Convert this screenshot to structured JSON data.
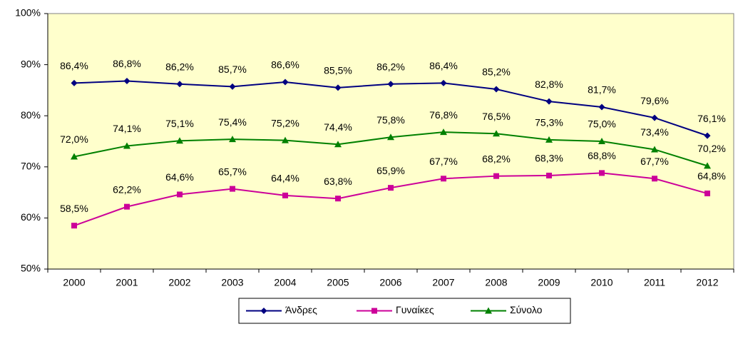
{
  "chart_data": {
    "type": "line",
    "categories": [
      "2000",
      "2001",
      "2002",
      "2003",
      "2004",
      "2005",
      "2006",
      "2007",
      "2008",
      "2009",
      "2010",
      "2011",
      "2012"
    ],
    "series": [
      {
        "name": "Άνδρες",
        "color": "#000080",
        "marker": "diamond",
        "values": [
          86.4,
          86.8,
          86.2,
          85.7,
          86.6,
          85.5,
          86.2,
          86.4,
          85.2,
          82.8,
          81.7,
          79.6,
          76.1
        ],
        "value_labels": [
          "86,4%",
          "86,8%",
          "86,2%",
          "85,7%",
          "86,6%",
          "85,5%",
          "86,2%",
          "86,4%",
          "85,2%",
          "82,8%",
          "81,7%",
          "79,6%",
          "76,1%"
        ]
      },
      {
        "name": "Γυναίκες",
        "color": "#CC0099",
        "marker": "square",
        "values": [
          58.5,
          62.2,
          64.6,
          65.7,
          64.4,
          63.8,
          65.9,
          67.7,
          68.2,
          68.3,
          68.8,
          67.7,
          64.8
        ],
        "value_labels": [
          "58,5%",
          "62,2%",
          "64,6%",
          "65,7%",
          "64,4%",
          "63,8%",
          "65,9%",
          "67,7%",
          "68,2%",
          "68,3%",
          "68,8%",
          "67,7%",
          "64,8%"
        ]
      },
      {
        "name": "Σύνολο",
        "color": "#008000",
        "marker": "triangle",
        "values": [
          72.0,
          74.1,
          75.1,
          75.4,
          75.2,
          74.4,
          75.8,
          76.8,
          76.5,
          75.3,
          75.0,
          73.4,
          70.2
        ],
        "value_labels": [
          "72,0%",
          "74,1%",
          "75,1%",
          "75,4%",
          "75,2%",
          "74,4%",
          "75,8%",
          "76,8%",
          "76,5%",
          "75,3%",
          "75,0%",
          "73,4%",
          "70,2%"
        ]
      }
    ],
    "ylim": [
      50,
      100
    ],
    "yticks": [
      {
        "value": 50,
        "label": "50%"
      },
      {
        "value": 60,
        "label": "60%"
      },
      {
        "value": 70,
        "label": "70%"
      },
      {
        "value": 80,
        "label": "80%"
      },
      {
        "value": 90,
        "label": "90%"
      },
      {
        "value": 100,
        "label": "100%"
      }
    ],
    "grid": false,
    "legend": "bottom",
    "plot_background": "#FFFFCC"
  }
}
